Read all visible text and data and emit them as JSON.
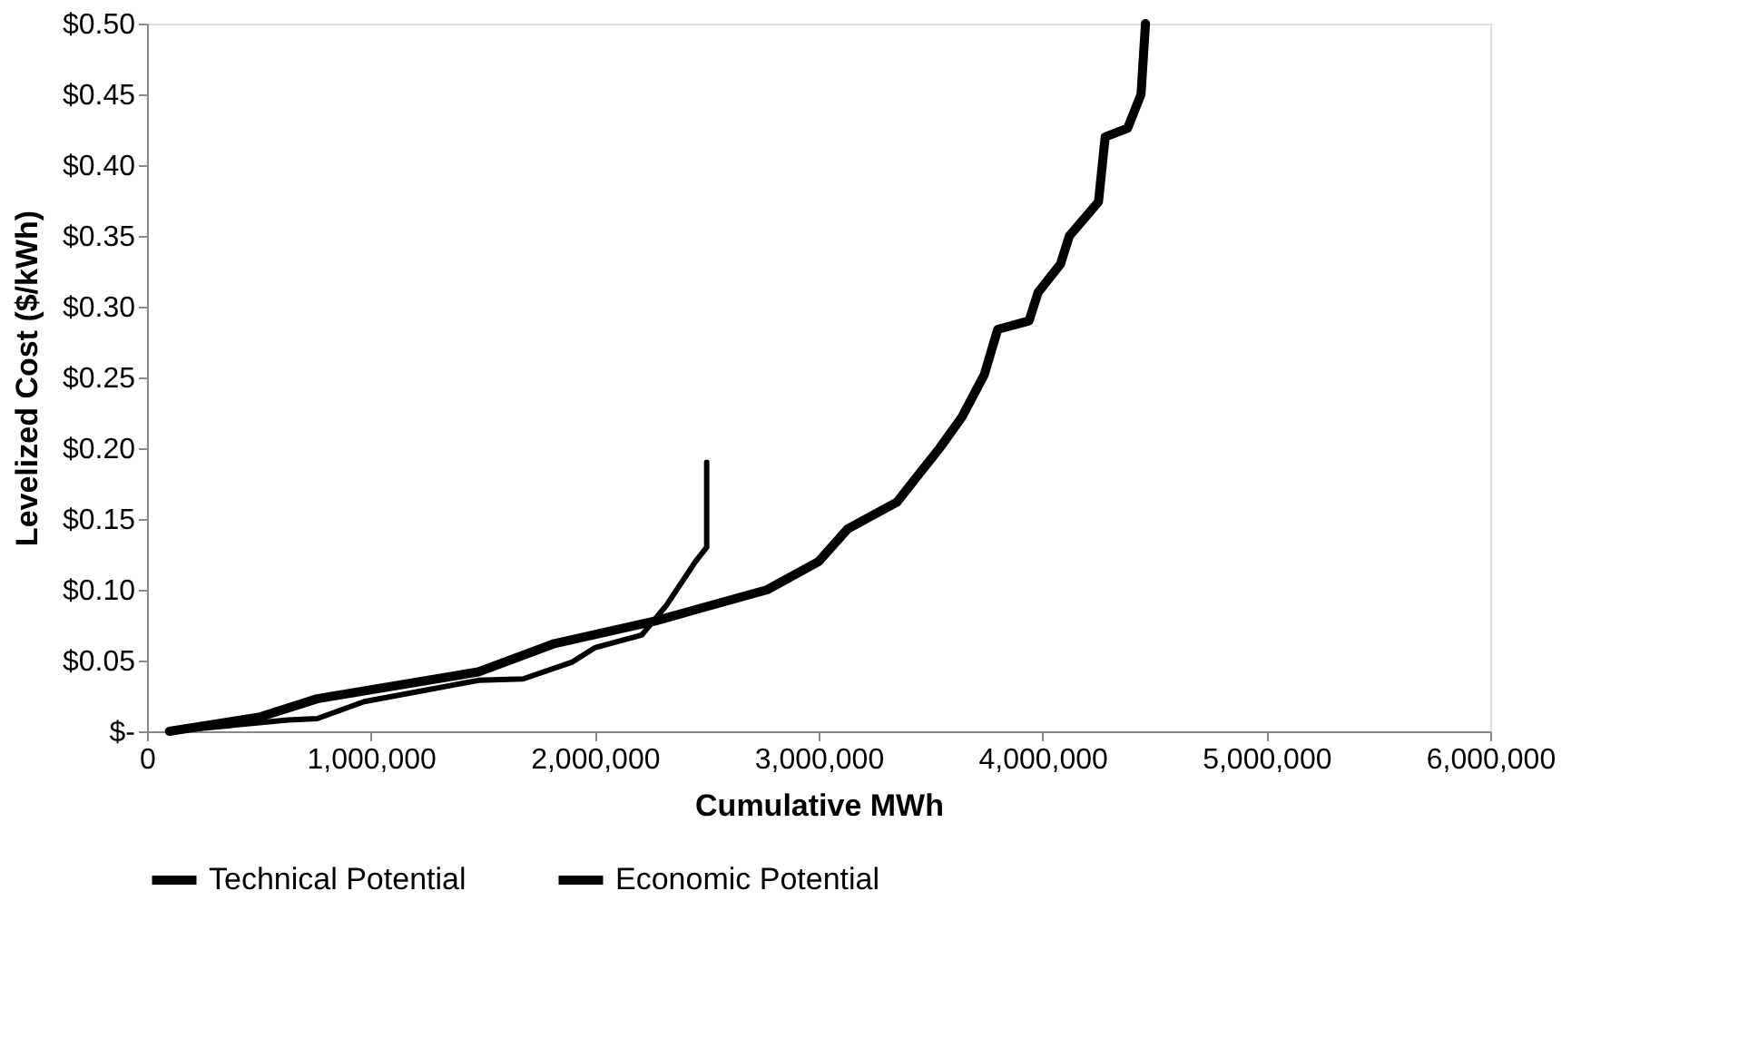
{
  "chart_data": {
    "type": "line",
    "xlabel": "Cumulative MWh",
    "ylabel": "Levelized Cost ($/kWh)",
    "xlim": [
      0,
      6000000
    ],
    "xticks": [
      {
        "value": 0,
        "label": "0"
      },
      {
        "value": 1000000,
        "label": "1,000,000"
      },
      {
        "value": 2000000,
        "label": "2,000,000"
      },
      {
        "value": 3000000,
        "label": "3,000,000"
      },
      {
        "value": 4000000,
        "label": "4,000,000"
      },
      {
        "value": 5000000,
        "label": "5,000,000"
      },
      {
        "value": 6000000,
        "label": "6,000,000"
      }
    ],
    "ylim": [
      0,
      0.5
    ],
    "yticks": [
      {
        "value": 0,
        "label": "$-"
      },
      {
        "value": 0.05,
        "label": "$0.05"
      },
      {
        "value": 0.1,
        "label": "$0.10"
      },
      {
        "value": 0.15,
        "label": "$0.15"
      },
      {
        "value": 0.2,
        "label": "$0.20"
      },
      {
        "value": 0.25,
        "label": "$0.25"
      },
      {
        "value": 0.3,
        "label": "$0.30"
      },
      {
        "value": 0.35,
        "label": "$0.35"
      },
      {
        "value": 0.4,
        "label": "$0.40"
      },
      {
        "value": 0.45,
        "label": "$0.45"
      },
      {
        "value": 0.5,
        "label": "$0.50"
      }
    ],
    "grid": false,
    "legend": "bottom",
    "marker": "none",
    "line_style": "solid",
    "series": [
      {
        "name": "Technical Potential",
        "color": "#000000",
        "x": [
          100000,
          500000,
          760000,
          1480000,
          1820000,
          2270000,
          2770000,
          3000000,
          3130000,
          3350000,
          3440000,
          3540000,
          3640000,
          3740000,
          3800000,
          3940000,
          3980000,
          4080000,
          4120000,
          4250000,
          4280000,
          4380000,
          4440000,
          4460000
        ],
        "values": [
          0,
          0.01,
          0.023,
          0.042,
          0.062,
          0.078,
          0.1,
          0.12,
          0.143,
          0.162,
          0.18,
          0.2,
          0.222,
          0.252,
          0.284,
          0.29,
          0.31,
          0.33,
          0.35,
          0.374,
          0.42,
          0.426,
          0.45,
          0.5
        ]
      },
      {
        "name": "Economic Potential",
        "color": "#000000",
        "x": [
          100000,
          630000,
          760000,
          970000,
          1480000,
          1680000,
          1900000,
          2000000,
          2210000,
          2320000,
          2450000,
          2500000,
          2500000
        ],
        "values": [
          0,
          0.008,
          0.009,
          0.021,
          0.036,
          0.037,
          0.049,
          0.059,
          0.068,
          0.089,
          0.12,
          0.13,
          0.19
        ]
      }
    ]
  }
}
